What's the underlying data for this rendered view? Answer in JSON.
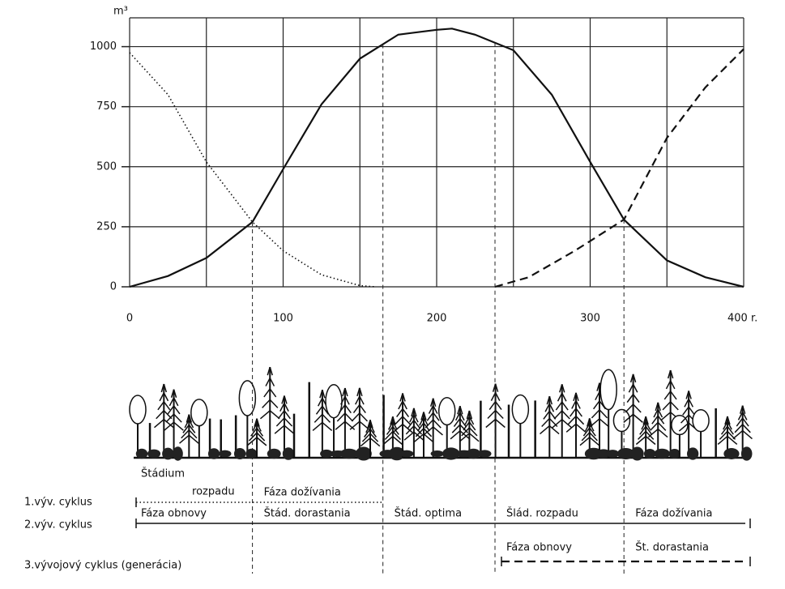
{
  "chart_data": {
    "type": "line",
    "y_label": "m³",
    "xlim": [
      0,
      400
    ],
    "ylim": [
      0,
      1120
    ],
    "xticks": [
      0,
      100,
      200,
      300,
      {
        "value": 400,
        "label": "400 r."
      }
    ],
    "xgrid": [
      0,
      50,
      100,
      150,
      200,
      250,
      300,
      350,
      400
    ],
    "yticks": [
      0,
      250,
      500,
      750,
      1000
    ],
    "grid": true,
    "series": [
      {
        "name": "2.výv. cyklus",
        "color": "#111111",
        "style": "solid",
        "x": [
          0,
          25,
          50,
          80,
          100,
          125,
          150,
          175,
          200,
          210,
          225,
          250,
          275,
          300,
          322,
          350,
          375,
          400
        ],
        "values": [
          0,
          45,
          120,
          270,
          490,
          760,
          950,
          1050,
          1070,
          1075,
          1050,
          985,
          800,
          520,
          280,
          110,
          40,
          0
        ]
      },
      {
        "name": "1.výv. cyklus",
        "color": "#111111",
        "style": "dotted",
        "x": [
          0,
          25,
          50,
          80,
          100,
          125,
          150,
          160
        ],
        "values": [
          975,
          800,
          520,
          270,
          150,
          50,
          5,
          0
        ]
      },
      {
        "name": "3.vývojový cyklus (generácia)",
        "color": "#111111",
        "style": "dashed",
        "x": [
          238,
          260,
          290,
          322,
          350,
          375,
          400
        ],
        "values": [
          0,
          40,
          150,
          280,
          620,
          830,
          990
        ]
      }
    ],
    "boundaries": [
      80,
      165,
      238,
      322
    ],
    "cycles": [
      {
        "label": "1.výv. cyklus",
        "style": "dotted",
        "from": 0,
        "to": 165,
        "phases": [
          {
            "text": "Štádium",
            "from": 0,
            "to": 80
          },
          {
            "text": "rozpadu",
            "from": 0,
            "to": 80
          },
          {
            "text": "Fáza dožívania",
            "from": 80,
            "to": 165
          }
        ]
      },
      {
        "label": "2.výv. cyklus",
        "style": "solid",
        "from": 0,
        "to": 400,
        "phases": [
          {
            "text": "Fáza obnovy",
            "from": 0,
            "to": 80
          },
          {
            "text": "Štád. dorastania",
            "from": 80,
            "to": 165
          },
          {
            "text": "Štád. optima",
            "from": 165,
            "to": 238
          },
          {
            "text": "Šlád. rozpadu",
            "from": 238,
            "to": 322
          },
          {
            "text": "Fáza dožívania",
            "from": 322,
            "to": 400
          }
        ]
      },
      {
        "label": "3.vývojový cyklus (generácia)",
        "style": "dashed",
        "from": 238,
        "to": 400,
        "phases": [
          {
            "text": "Fáza obnovy",
            "from": 238,
            "to": 322
          },
          {
            "text": "Št. dorastania",
            "from": 322,
            "to": 400
          }
        ]
      }
    ]
  }
}
